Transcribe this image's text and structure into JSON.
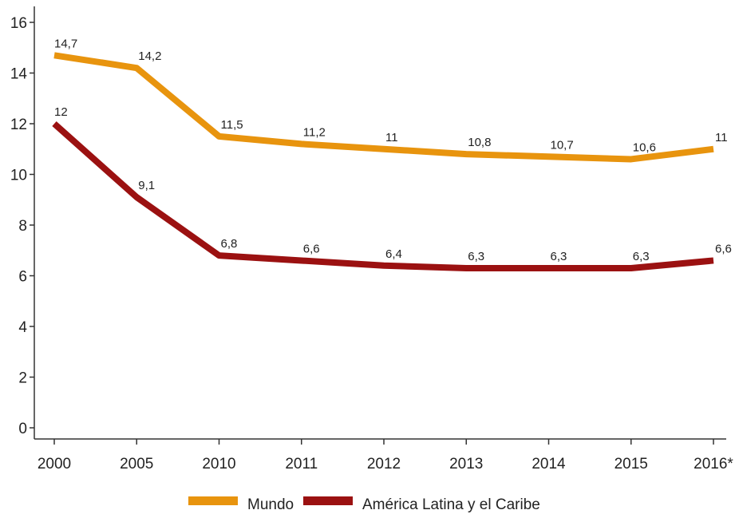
{
  "chart_data": {
    "type": "line",
    "categories": [
      "2000",
      "2005",
      "2010",
      "2011",
      "2012",
      "2013",
      "2014",
      "2015",
      "2016*"
    ],
    "series": [
      {
        "name": "Mundo",
        "color": "#E8940E",
        "values": [
          14.7,
          14.2,
          11.5,
          11.2,
          11,
          10.8,
          10.7,
          10.6,
          11
        ],
        "labels": [
          "14,7",
          "14,2",
          "11,5",
          "11,2",
          "11",
          "10,8",
          "10,7",
          "10,6",
          "11"
        ]
      },
      {
        "name": "América Latina y el Caribe",
        "color": "#9B1111",
        "values": [
          12,
          9.1,
          6.8,
          6.6,
          6.4,
          6.3,
          6.3,
          6.3,
          6.6
        ],
        "labels": [
          "12",
          "9,1",
          "6,8",
          "6,6",
          "6,4",
          "6,3",
          "6,3",
          "6,3",
          "6,6"
        ]
      }
    ],
    "y_ticks": [
      "0",
      "2",
      "4",
      "6",
      "8",
      "10",
      "12",
      "14",
      "16"
    ],
    "ylim": [
      0,
      16
    ],
    "grid": false,
    "legend_position": "bottom-center"
  }
}
